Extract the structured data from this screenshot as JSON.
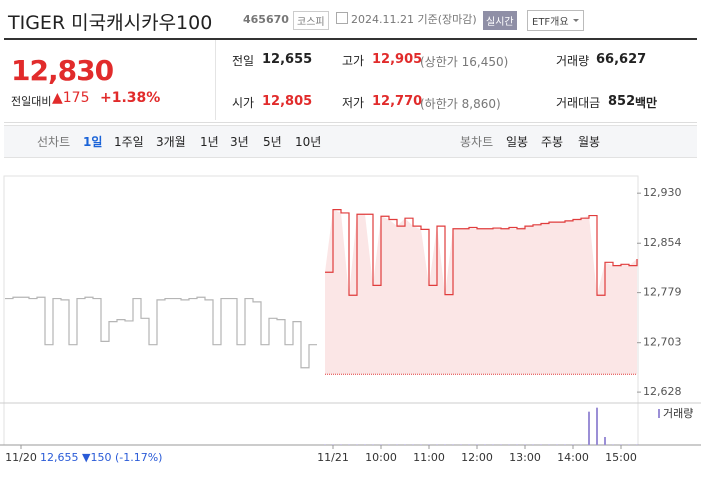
{
  "header": {
    "title": "TIGER 미국캐시카우100",
    "code": "465670",
    "market": "코스피",
    "date": "2024.11.21 기준(장마감)",
    "realtime": "실시간",
    "etf_button": "ETF개요"
  },
  "quote": {
    "price": "12,830",
    "change_label": "전일대비",
    "change": "▲175",
    "rate": "+1.38%",
    "items": [
      {
        "label": "전일",
        "value": "12,655"
      },
      {
        "label": "고가",
        "value": "12,905",
        "note": "(상한가 16,450)"
      },
      {
        "label": "거래량",
        "value": "66,627"
      },
      {
        "label": "시가",
        "value": "12,805"
      },
      {
        "label": "저가",
        "value": "12,770",
        "note": "(하한가 8,860)"
      },
      {
        "label": "거래대금",
        "value": "852",
        "unit": "백만"
      }
    ]
  },
  "tabs": {
    "line_label": "선차트",
    "line": [
      "1일",
      "1주일",
      "3개월",
      "1년",
      "3년",
      "5년",
      "10년"
    ],
    "candle_label": "봉차트",
    "candle": [
      "일봉",
      "주봉",
      "월봉"
    ]
  },
  "chart_data": {
    "type": "line",
    "x": [
      null,
      null,
      "11/20",
      null,
      null,
      null,
      null,
      null,
      null,
      null,
      null,
      null,
      null,
      null,
      null,
      null,
      null,
      null,
      null,
      null,
      null,
      null,
      null,
      null,
      null,
      null,
      null,
      null,
      null,
      null,
      null,
      null,
      null,
      null,
      null,
      null,
      null,
      null,
      null,
      null,
      null,
      "11/21",
      null,
      null,
      null,
      null,
      null,
      "10:00",
      null,
      null,
      null,
      null,
      null,
      "11:00",
      null,
      null,
      null,
      null,
      null,
      "12:00",
      null,
      null,
      null,
      null,
      null,
      "13:00",
      null,
      null,
      null,
      null,
      null,
      "14:00",
      null,
      null,
      null,
      null,
      null,
      "15:00",
      null,
      null
    ],
    "series": [
      {
        "color": "#b5b5b5",
        "values": [
          12770,
          12772,
          12772,
          12770,
          12772,
          12700,
          12770,
          12768,
          12700,
          12770,
          12772,
          12770,
          12705,
          12735,
          12738,
          12736,
          12770,
          12740,
          12700,
          12768,
          12770,
          12770,
          12768,
          12770,
          12772,
          12768,
          12700,
          12770,
          12770,
          12700,
          12770,
          12765,
          12700,
          12740,
          12738,
          12700,
          12735,
          12665,
          12700,
          12700,
          null,
          null,
          null,
          null,
          null,
          null,
          null,
          null,
          null,
          null,
          null,
          null,
          null,
          null,
          null,
          null,
          null,
          null,
          null,
          null,
          null,
          null,
          null,
          null,
          null,
          null,
          null,
          null,
          null,
          null,
          null,
          null,
          null,
          null,
          null,
          null,
          null,
          null,
          null,
          null
        ]
      },
      {
        "color": "#e03c3c",
        "area": true,
        "values": [
          null,
          null,
          null,
          null,
          null,
          null,
          null,
          null,
          null,
          null,
          null,
          null,
          null,
          null,
          null,
          null,
          null,
          null,
          null,
          null,
          null,
          null,
          null,
          null,
          null,
          null,
          null,
          null,
          null,
          null,
          null,
          null,
          null,
          null,
          null,
          null,
          null,
          null,
          null,
          null,
          12810,
          12905,
          12900,
          12775,
          12898,
          12898,
          12790,
          12895,
          12890,
          12880,
          12892,
          12880,
          12875,
          12790,
          12880,
          12776,
          12876,
          12876,
          12878,
          12876,
          12876,
          12877,
          12876,
          12878,
          12876,
          12880,
          12882,
          12884,
          12886,
          12886,
          12888,
          12890,
          12892,
          12896,
          12775,
          12825,
          12820,
          12822,
          12820,
          12830
        ]
      }
    ],
    "baseline": 12655,
    "ylim": [
      12616,
      12950
    ],
    "yticks": [
      {
        "value": 12628,
        "label": "12,628"
      },
      {
        "value": 12703,
        "label": "12,703"
      },
      {
        "value": 12779,
        "label": "12,779"
      },
      {
        "value": 12854,
        "label": "12,854"
      },
      {
        "value": 12930,
        "label": "12,930"
      }
    ],
    "volume_label": "거래량",
    "volume_color": "#9b8fd6",
    "volume_lim": [
      0,
      30000
    ],
    "volume": [
      null,
      null,
      null,
      null,
      null,
      null,
      null,
      null,
      null,
      null,
      null,
      null,
      null,
      null,
      null,
      null,
      null,
      null,
      null,
      null,
      null,
      null,
      null,
      null,
      null,
      null,
      null,
      null,
      null,
      null,
      null,
      null,
      null,
      null,
      null,
      null,
      null,
      null,
      null,
      null,
      300,
      300,
      300,
      300,
      300,
      300,
      300,
      300,
      300,
      300,
      300,
      300,
      300,
      300,
      300,
      300,
      300,
      300,
      300,
      300,
      300,
      300,
      300,
      300,
      300,
      300,
      300,
      300,
      300,
      300,
      300,
      300,
      300,
      25000,
      28000,
      6000,
      300,
      300,
      300,
      300
    ]
  },
  "footer": {
    "price": "12,655",
    "change": "▼150",
    "rate": "(-1.17%)"
  }
}
